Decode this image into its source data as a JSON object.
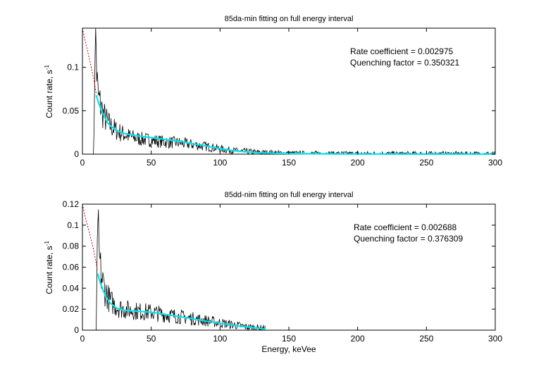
{
  "chart_data": [
    {
      "type": "line",
      "title": "85da-min fitting on full energy interval",
      "xlabel": "",
      "ylabel": "Count rate, s",
      "ylabel_superscript": "-1",
      "xlim": [
        0,
        300
      ],
      "ylim": [
        0,
        0.145
      ],
      "xticks": [
        "0",
        "50",
        "100",
        "150",
        "200",
        "250",
        "300"
      ],
      "yticks": [
        "0",
        "0.05",
        "0.1"
      ],
      "ytick_values": [
        0,
        0.05,
        0.1
      ],
      "annotations": [
        "Rate coefficient = 0.002975",
        "Quenching factor = 0.350321"
      ],
      "colors": {
        "data": "#000000",
        "fit": "#00e5ee",
        "extrapolation": "#cc0000"
      },
      "series": [
        {
          "role": "data",
          "style": "noisy-black",
          "x": [
            8,
            8.5,
            9,
            9.5,
            10,
            10.5,
            11,
            12,
            13,
            14,
            15,
            17,
            20,
            25,
            30,
            35,
            40,
            45,
            50,
            60,
            70,
            80,
            90,
            100,
            110,
            120,
            130,
            140,
            150,
            170,
            200,
            250,
            300
          ],
          "y": [
            0,
            0.03,
            0.1,
            0.138,
            0.12,
            0.09,
            0.072,
            0.062,
            0.058,
            0.052,
            0.046,
            0.04,
            0.033,
            0.027,
            0.023,
            0.02,
            0.018,
            0.017,
            0.016,
            0.014,
            0.013,
            0.011,
            0.009,
            0.006,
            0.004,
            0.003,
            0.002,
            0.0015,
            0.001,
            0.0008,
            0.0006,
            0.0005,
            0.0005
          ]
        },
        {
          "role": "fit",
          "style": "solid-cyan",
          "x": [
            10,
            12,
            14,
            16,
            18,
            20,
            25,
            30,
            40,
            50,
            60,
            70,
            80,
            90,
            100,
            110,
            120,
            130,
            140,
            150,
            170,
            200,
            250,
            300
          ],
          "y": [
            0.068,
            0.058,
            0.05,
            0.043,
            0.037,
            0.033,
            0.027,
            0.024,
            0.021,
            0.019,
            0.017,
            0.015,
            0.012,
            0.0095,
            0.0065,
            0.004,
            0.0025,
            0.0015,
            0.001,
            0.0007,
            0.0004,
            0.0002,
            0.0001,
            0.0001
          ]
        },
        {
          "role": "extrapolation",
          "style": "dashed-red",
          "x": [
            0,
            2,
            4,
            6,
            8,
            10
          ],
          "y": [
            0.145,
            0.13,
            0.117,
            0.103,
            0.088,
            0.07
          ]
        }
      ]
    },
    {
      "type": "line",
      "title": "85dd-nim fitting on full energy interval",
      "xlabel": "Energy, keVee",
      "ylabel": "Count rate, s",
      "ylabel_superscript": "-1",
      "xlim": [
        0,
        300
      ],
      "ylim": [
        0,
        0.12
      ],
      "xticks": [
        "0",
        "50",
        "100",
        "150",
        "200",
        "250",
        "300"
      ],
      "yticks": [
        "0",
        "0.02",
        "0.04",
        "0.06",
        "0.08",
        "0.1",
        "0.12"
      ],
      "ytick_values": [
        0,
        0.02,
        0.04,
        0.06,
        0.08,
        0.1,
        0.12
      ],
      "annotations": [
        "Rate coefficient = 0.002688",
        "Quenching factor = 0.376309"
      ],
      "colors": {
        "data": "#000000",
        "fit": "#00e5ee",
        "extrapolation": "#cc0000"
      },
      "series": [
        {
          "role": "data",
          "style": "noisy-black",
          "x": [
            10,
            10.5,
            11,
            11.5,
            12,
            12.5,
            13,
            14,
            15,
            17,
            20,
            25,
            30,
            40,
            50,
            60,
            70,
            80,
            90,
            100,
            110,
            120,
            130,
            133
          ],
          "y": [
            0,
            0.05,
            0.11,
            0.09,
            0.075,
            0.065,
            0.058,
            0.05,
            0.044,
            0.036,
            0.028,
            0.022,
            0.02,
            0.018,
            0.017,
            0.015,
            0.013,
            0.011,
            0.009,
            0.007,
            0.005,
            0.003,
            0.002,
            0.002
          ]
        },
        {
          "role": "fit",
          "style": "solid-cyan",
          "x": [
            11,
            13,
            15,
            17,
            20,
            25,
            30,
            40,
            50,
            60,
            70,
            80,
            90,
            100,
            110,
            120,
            130,
            133
          ],
          "y": [
            0.054,
            0.045,
            0.038,
            0.032,
            0.026,
            0.021,
            0.019,
            0.018,
            0.017,
            0.015,
            0.013,
            0.011,
            0.0085,
            0.0065,
            0.0045,
            0.003,
            0.0015,
            0.001
          ]
        },
        {
          "role": "extrapolation",
          "style": "dashed-red",
          "x": [
            0,
            2,
            4,
            6,
            8,
            10,
            11
          ],
          "y": [
            0.12,
            0.108,
            0.098,
            0.088,
            0.077,
            0.064,
            0.057
          ]
        }
      ]
    }
  ]
}
